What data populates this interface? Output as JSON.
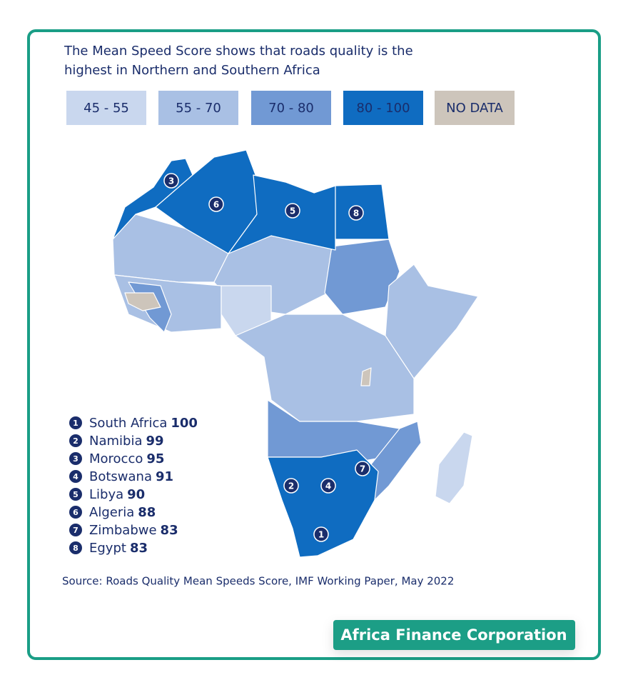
{
  "title": "The Mean Speed Score shows that roads quality is the highest in Northern and Southern Africa",
  "legend": [
    {
      "label": "45 - 55",
      "color": "#c9d7ee"
    },
    {
      "label": "55 - 70",
      "color": "#a9c0e4"
    },
    {
      "label": "70 - 80",
      "color": "#7199d4"
    },
    {
      "label": "80 - 100",
      "color": "#0f6cc1"
    },
    {
      "label": "NO DATA",
      "color": "#cdc5bb"
    }
  ],
  "ranking": [
    {
      "rank": 1,
      "country": "South Africa",
      "score": 100
    },
    {
      "rank": 2,
      "country": "Namibia",
      "score": 99
    },
    {
      "rank": 3,
      "country": "Morocco",
      "score": 95
    },
    {
      "rank": 4,
      "country": "Botswana",
      "score": 91
    },
    {
      "rank": 5,
      "country": "Libya",
      "score": 90
    },
    {
      "rank": 6,
      "country": "Algeria",
      "score": 88
    },
    {
      "rank": 7,
      "country": "Zimbabwe",
      "score": 83
    },
    {
      "rank": 8,
      "country": "Egypt",
      "score": 83
    }
  ],
  "source": "Source: Roads Quality Mean Speeds Score, IMF Working Paper, May 2022",
  "brand": "Africa Finance Corporation"
}
